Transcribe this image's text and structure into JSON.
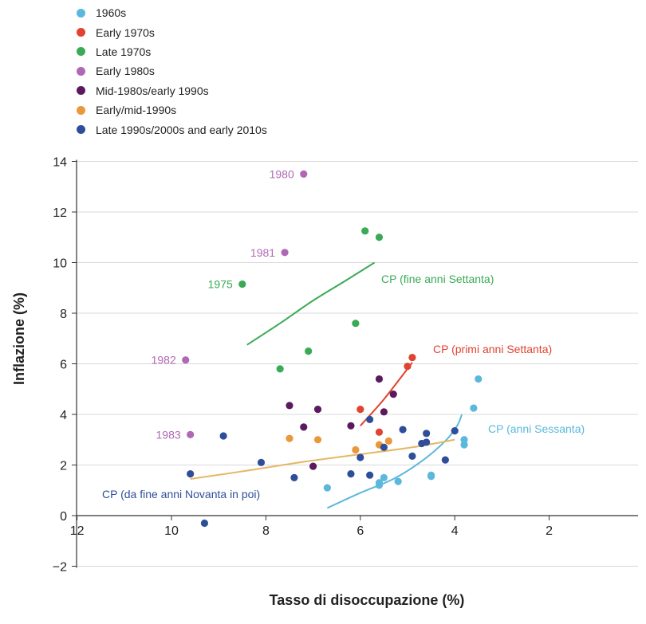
{
  "chart_data": {
    "type": "scatter",
    "xlabel": "Tasso di disoccupazione (%)",
    "ylabel": "Inflazione (%)",
    "xlim": [
      13,
      0
    ],
    "ylim": [
      -2,
      14
    ],
    "x_reversed": true,
    "x_ticks": [
      12,
      10,
      8,
      6,
      4,
      2
    ],
    "y_ticks": [
      -2,
      0,
      2,
      4,
      6,
      8,
      10,
      12,
      14
    ],
    "grid": "horizontal",
    "legend_position": "top-left",
    "series": [
      {
        "name": "1960s",
        "color": "#5bb8dc",
        "points": [
          [
            3.5,
            5.4
          ],
          [
            3.6,
            4.25
          ],
          [
            3.8,
            3.0
          ],
          [
            3.8,
            2.8
          ],
          [
            6.7,
            1.1
          ],
          [
            5.6,
            1.3
          ],
          [
            5.6,
            1.2
          ],
          [
            5.5,
            1.5
          ],
          [
            5.2,
            1.35
          ],
          [
            4.5,
            1.55
          ],
          [
            4.5,
            1.6
          ]
        ]
      },
      {
        "name": "Early 1970s",
        "color": "#e0432f",
        "points": [
          [
            4.9,
            6.25
          ],
          [
            5.0,
            5.9
          ],
          [
            5.6,
            3.3
          ],
          [
            6.0,
            4.2
          ]
        ]
      },
      {
        "name": "Late 1970s",
        "color": "#3aaa56",
        "points": [
          [
            5.6,
            11.0
          ],
          [
            5.9,
            11.25
          ],
          [
            8.5,
            9.15
          ],
          [
            6.1,
            7.6
          ],
          [
            7.1,
            6.5
          ],
          [
            7.7,
            5.8
          ]
        ]
      },
      {
        "name": "Early 1980s",
        "color": "#b068b4",
        "points": [
          [
            7.2,
            13.5
          ],
          [
            7.6,
            10.4
          ],
          [
            9.7,
            6.15
          ],
          [
            9.6,
            3.2
          ]
        ]
      },
      {
        "name": "Mid-1980s/early 1990s",
        "color": "#5b1a5e",
        "points": [
          [
            5.6,
            5.4
          ],
          [
            5.3,
            4.8
          ],
          [
            5.5,
            4.1
          ],
          [
            7.5,
            4.35
          ],
          [
            6.9,
            4.2
          ],
          [
            7.2,
            3.5
          ],
          [
            6.2,
            3.55
          ],
          [
            7.0,
            1.95
          ]
        ]
      },
      {
        "name": "Early/mid-1990s",
        "color": "#e9983c",
        "points": [
          [
            7.5,
            3.05
          ],
          [
            6.9,
            3.0
          ],
          [
            6.1,
            2.6
          ],
          [
            5.6,
            2.8
          ],
          [
            5.4,
            2.95
          ]
        ]
      },
      {
        "name": "Late 1990s/2000s and early 2010s",
        "color": "#2f4e9a",
        "points": [
          [
            9.6,
            1.65
          ],
          [
            8.9,
            3.15
          ],
          [
            8.1,
            2.1
          ],
          [
            7.4,
            1.5
          ],
          [
            6.2,
            1.65
          ],
          [
            5.8,
            1.6
          ],
          [
            6.0,
            2.3
          ],
          [
            5.8,
            3.8
          ],
          [
            5.1,
            3.4
          ],
          [
            4.6,
            3.25
          ],
          [
            4.0,
            3.35
          ],
          [
            4.7,
            2.85
          ],
          [
            4.6,
            2.9
          ],
          [
            4.9,
            2.35
          ],
          [
            4.2,
            2.2
          ],
          [
            5.5,
            2.7
          ],
          [
            9.3,
            -0.3
          ]
        ]
      }
    ],
    "curves": [
      {
        "label": "CP (anni Sessanta)",
        "color": "#5bb8dc",
        "points": [
          [
            6.7,
            0.3
          ],
          [
            6.0,
            0.9
          ],
          [
            5.3,
            1.45
          ],
          [
            4.7,
            2.15
          ],
          [
            4.2,
            2.95
          ],
          [
            3.95,
            3.55
          ],
          [
            3.85,
            4.0
          ]
        ]
      },
      {
        "label": "CP (primi anni Settanta)",
        "color": "#e0432f",
        "points": [
          [
            6.0,
            3.55
          ],
          [
            5.5,
            4.6
          ],
          [
            4.9,
            6.05
          ]
        ]
      },
      {
        "label": "CP (fine anni Settanta)",
        "color": "#3aaa56",
        "points": [
          [
            8.4,
            6.75
          ],
          [
            7.7,
            7.6
          ],
          [
            7.0,
            8.5
          ],
          [
            6.3,
            9.3
          ],
          [
            5.7,
            10.0
          ]
        ]
      },
      {
        "label": "CP (da fine anni Novanta in poi)",
        "color": "#e3b865",
        "points": [
          [
            9.6,
            1.45
          ],
          [
            8.5,
            1.75
          ],
          [
            7.3,
            2.1
          ],
          [
            6.1,
            2.4
          ],
          [
            4.9,
            2.7
          ],
          [
            4.0,
            3.0
          ]
        ]
      }
    ],
    "annotations": [
      {
        "text": "1980",
        "x": 7.2,
        "y": 13.5,
        "color": "#b068b4"
      },
      {
        "text": "1981",
        "x": 7.6,
        "y": 10.4,
        "color": "#b068b4"
      },
      {
        "text": "1975",
        "x": 8.5,
        "y": 9.15,
        "color": "#3aaa56"
      },
      {
        "text": "1982",
        "x": 9.7,
        "y": 6.15,
        "color": "#b068b4"
      },
      {
        "text": "1983",
        "x": 9.6,
        "y": 3.2,
        "color": "#b068b4"
      }
    ]
  }
}
